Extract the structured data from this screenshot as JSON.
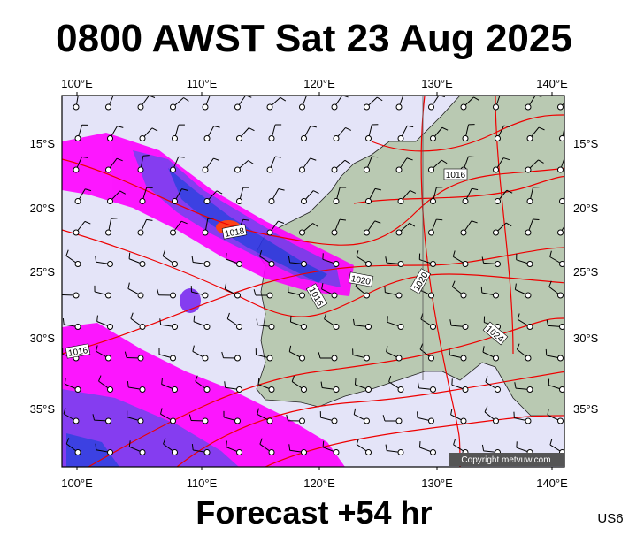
{
  "title": "0800 AWST Sat 23 Aug 2025",
  "footer": "Forecast +54 hr",
  "code": "US6",
  "copyright": "Copyright metvuw.com",
  "longitude_labels": [
    "100°E",
    "110°E",
    "120°E",
    "130°E",
    "140°E"
  ],
  "latitude_labels": [
    "15°S",
    "20°S",
    "25°S",
    "30°S",
    "35°S"
  ],
  "isobar_labels": [
    "1016",
    "1018",
    "1020",
    "1020",
    "1016",
    "1016",
    "1024"
  ]
}
